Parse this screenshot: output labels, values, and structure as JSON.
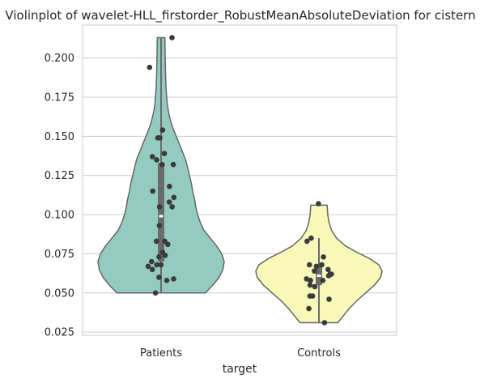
{
  "chart_data": {
    "type": "violin",
    "title": "Violinplot of wavelet-HLL_firstorder_RobustMeanAbsoluteDeviation for cistern",
    "xlabel": "target",
    "ylabel": "",
    "categories": [
      "Patients",
      "Controls"
    ],
    "ylim": [
      0.023,
      0.221
    ],
    "yticks": [
      0.025,
      0.05,
      0.075,
      0.1,
      0.125,
      0.15,
      0.175,
      0.2
    ],
    "ytick_labels": [
      "0.025",
      "0.050",
      "0.075",
      "0.100",
      "0.125",
      "0.150",
      "0.175",
      "0.200"
    ],
    "grid": true,
    "colors": {
      "Patients": "#94cbbf",
      "Controls": "#f8f8b8"
    },
    "series": [
      {
        "category": "Patients",
        "points": [
          0.213,
          0.194,
          0.154,
          0.149,
          0.149,
          0.139,
          0.137,
          0.135,
          0.132,
          0.132,
          0.118,
          0.115,
          0.111,
          0.108,
          0.105,
          0.105,
          0.093,
          0.083,
          0.083,
          0.081,
          0.076,
          0.074,
          0.073,
          0.07,
          0.068,
          0.068,
          0.067,
          0.065,
          0.06,
          0.059,
          0.058,
          0.05
        ],
        "box": {
          "q1": 0.07,
          "median": 0.099,
          "q3": 0.133,
          "whisker_low": 0.05,
          "whisker_high": 0.213
        },
        "violin_profile": [
          [
            0.05,
            0.7
          ],
          [
            0.055,
            0.82
          ],
          [
            0.06,
            0.92
          ],
          [
            0.065,
            0.98
          ],
          [
            0.07,
            1.0
          ],
          [
            0.075,
            0.96
          ],
          [
            0.08,
            0.88
          ],
          [
            0.085,
            0.78
          ],
          [
            0.09,
            0.68
          ],
          [
            0.095,
            0.62
          ],
          [
            0.1,
            0.58
          ],
          [
            0.105,
            0.55
          ],
          [
            0.11,
            0.53
          ],
          [
            0.115,
            0.5
          ],
          [
            0.12,
            0.48
          ],
          [
            0.125,
            0.45
          ],
          [
            0.13,
            0.42
          ],
          [
            0.135,
            0.39
          ],
          [
            0.14,
            0.34
          ],
          [
            0.145,
            0.29
          ],
          [
            0.15,
            0.24
          ],
          [
            0.155,
            0.19
          ],
          [
            0.16,
            0.15
          ],
          [
            0.165,
            0.12
          ],
          [
            0.17,
            0.1
          ],
          [
            0.18,
            0.08
          ],
          [
            0.19,
            0.07
          ],
          [
            0.2,
            0.065
          ],
          [
            0.213,
            0.06
          ]
        ]
      },
      {
        "category": "Controls",
        "points": [
          0.107,
          0.085,
          0.083,
          0.073,
          0.068,
          0.068,
          0.067,
          0.065,
          0.064,
          0.062,
          0.062,
          0.061,
          0.059,
          0.058,
          0.058,
          0.058,
          0.055,
          0.054,
          0.048,
          0.048,
          0.046,
          0.04,
          0.031
        ],
        "box": {
          "q1": 0.055,
          "median": 0.061,
          "q3": 0.068,
          "whisker_low": 0.031,
          "whisker_high": 0.085
        },
        "violin_profile": [
          [
            0.031,
            0.3
          ],
          [
            0.035,
            0.38
          ],
          [
            0.04,
            0.48
          ],
          [
            0.045,
            0.6
          ],
          [
            0.05,
            0.74
          ],
          [
            0.055,
            0.88
          ],
          [
            0.06,
            0.98
          ],
          [
            0.064,
            1.0
          ],
          [
            0.068,
            0.95
          ],
          [
            0.072,
            0.8
          ],
          [
            0.076,
            0.6
          ],
          [
            0.08,
            0.42
          ],
          [
            0.085,
            0.28
          ],
          [
            0.09,
            0.2
          ],
          [
            0.095,
            0.16
          ],
          [
            0.1,
            0.14
          ],
          [
            0.106,
            0.13
          ]
        ]
      }
    ]
  }
}
